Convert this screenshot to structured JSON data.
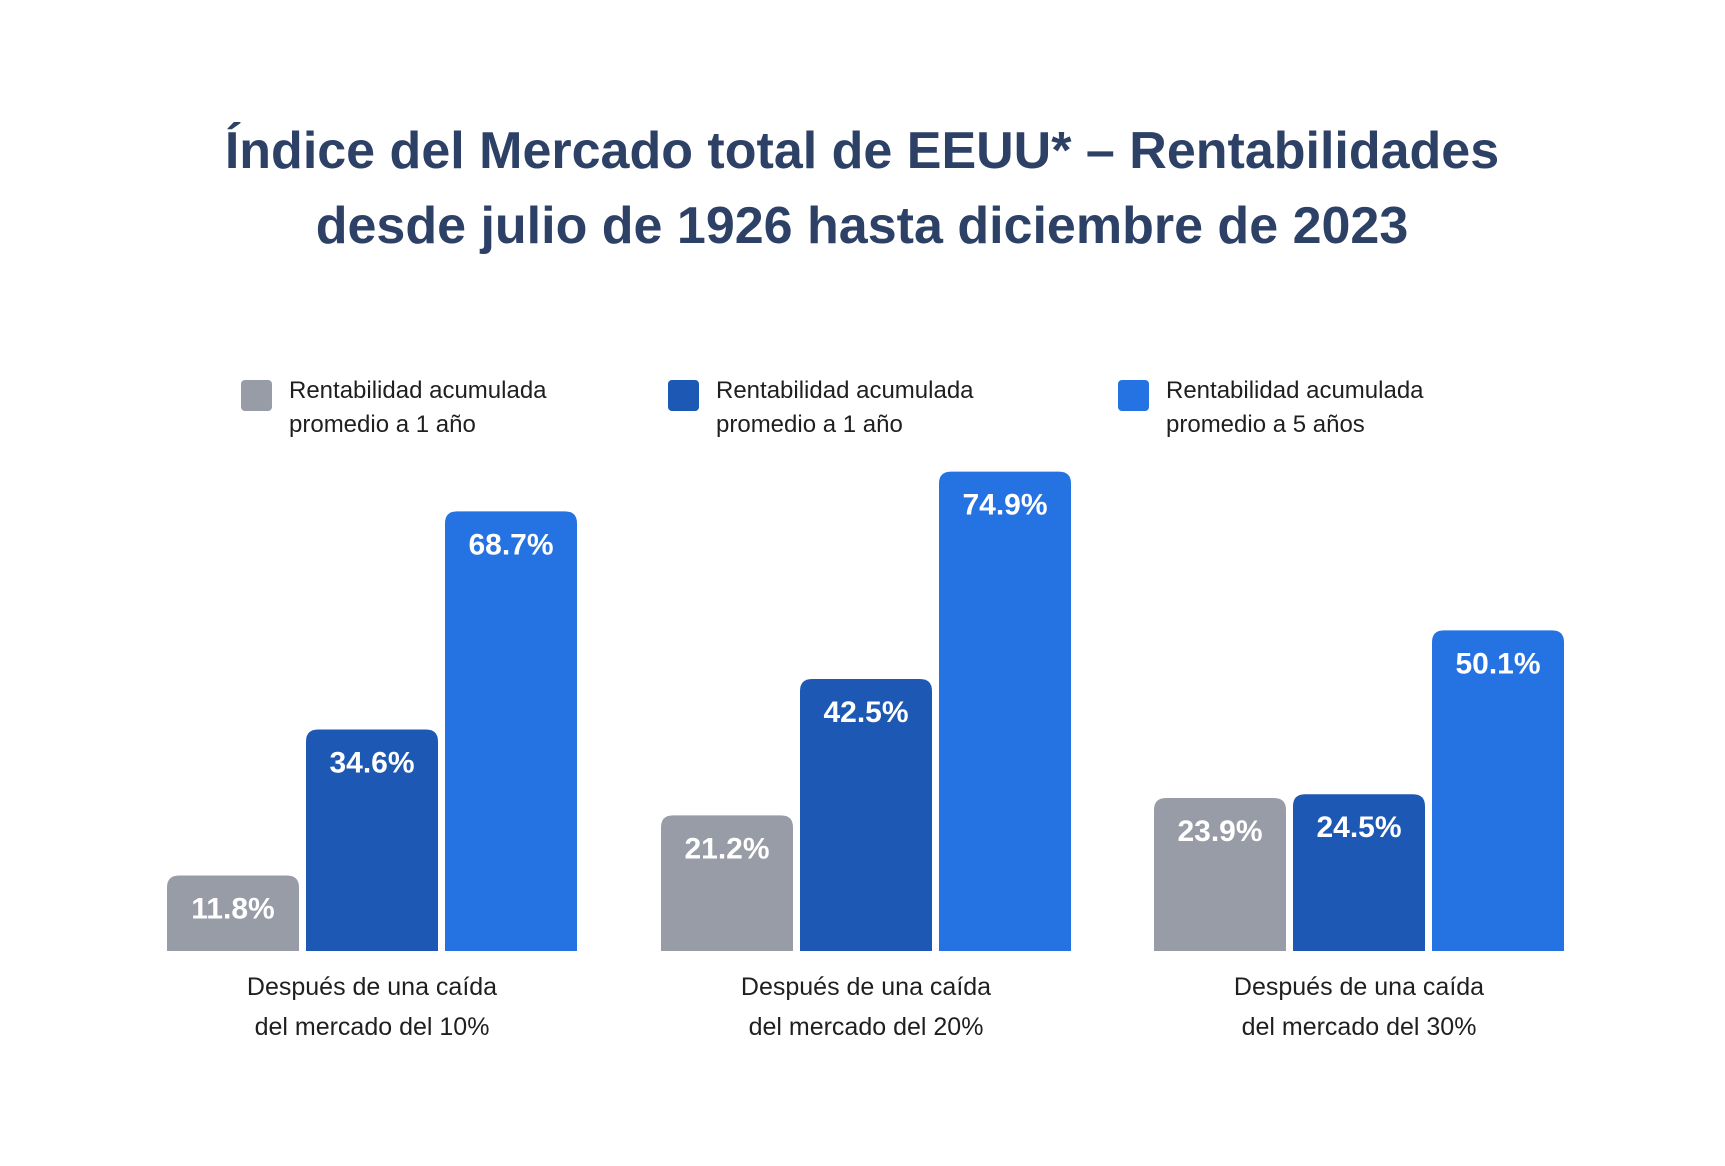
{
  "chart_data": {
    "type": "bar",
    "title": [
      "Índice del Mercado total de EEUU* – Rentabilidades",
      "desde julio de 1926 hasta diciembre de 2023"
    ],
    "categories": [
      [
        "Después de una caída",
        "del mercado del 10%"
      ],
      [
        "Después de una caída",
        "del mercado del 20%"
      ],
      [
        "Después de una caída",
        "del mercado del 30%"
      ]
    ],
    "series": [
      {
        "name": [
          "Rentabilidad acumulada",
          "promedio a 1 año"
        ],
        "values": [
          11.8,
          21.2,
          23.9
        ],
        "labels": [
          "11.8%",
          "21.2%",
          "23.9%"
        ],
        "color": "#989ca6"
      },
      {
        "name": [
          "Rentabilidad acumulada",
          "promedio a 1 año"
        ],
        "values": [
          34.6,
          42.5,
          24.5
        ],
        "labels": [
          "34.6%",
          "42.5%",
          "24.5%"
        ],
        "color": "#1e58b5"
      },
      {
        "name": [
          "Rentabilidad acumulada",
          "promedio a 5 años"
        ],
        "values": [
          68.7,
          74.9,
          50.1
        ],
        "labels": [
          "68.7%",
          "74.9%",
          "50.1%"
        ],
        "color": "#2572e3"
      }
    ],
    "ylim": [
      0,
      75
    ],
    "xlabel": "",
    "ylabel": "",
    "grid": false,
    "legend_position": "top"
  }
}
